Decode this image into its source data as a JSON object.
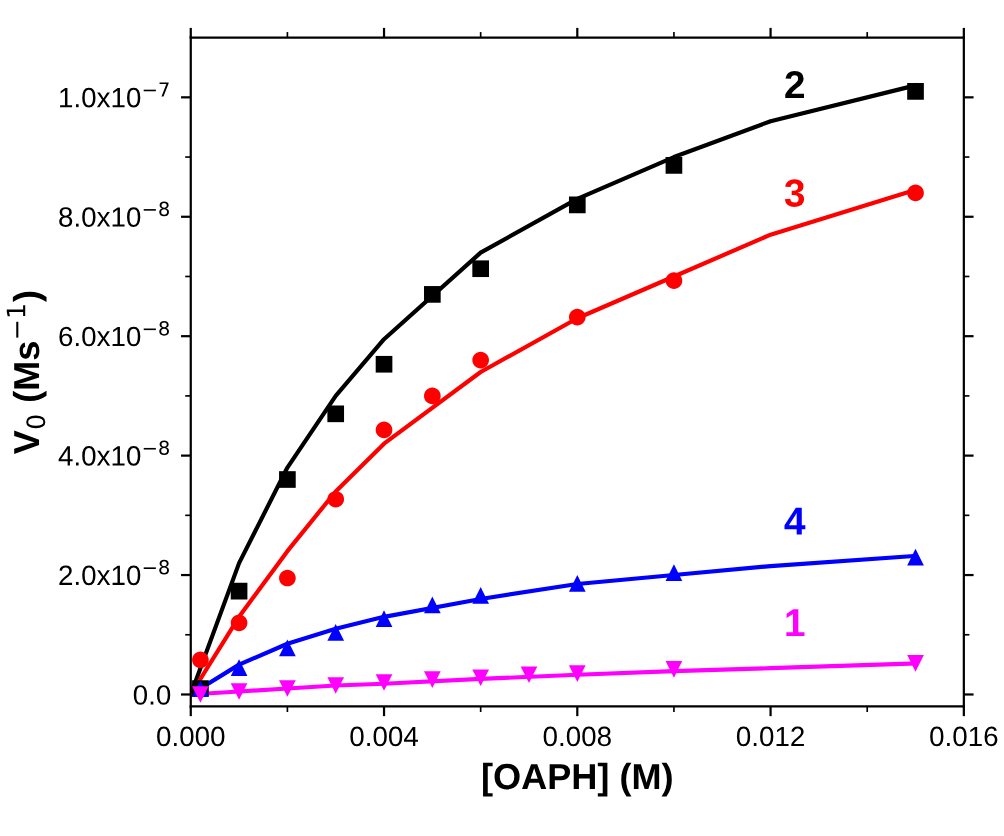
{
  "chart_data": {
    "type": "scatter",
    "xlabel": "[OAPH] (M)",
    "ylabel": "V$_{0}$ (Ms$^{−1}$)",
    "xlim": [
      0,
      0.016
    ],
    "ylim": [
      -2e-09,
      1.1e-07
    ],
    "xticks": [
      {
        "value": 0,
        "label": "0.000"
      },
      0.004,
      0.008,
      0.012,
      0.016
    ],
    "yticks": [
      {
        "value": 0,
        "label": "0.0"
      },
      {
        "value": 2e-08,
        "label": "2.0x10$^{−8}$"
      },
      {
        "value": 4e-08,
        "label": "4.0x10$^{−8}$"
      },
      {
        "value": 6e-08,
        "label": "6.0x10$^{−8}$"
      },
      {
        "value": 8e-08,
        "label": "8.0x10$^{−8}$"
      },
      {
        "value": 1e-07,
        "label": "1.0x10$^{−7}$"
      }
    ],
    "grid": false,
    "series": [
      {
        "name": "2",
        "color": "#000000",
        "marker": "square",
        "x": [
          0.0002,
          0.001,
          0.002,
          0.003,
          0.004,
          0.005,
          0.006,
          0.008,
          0.01,
          0.015
        ],
        "values": [
          1e-09,
          1.73e-08,
          3.6e-08,
          4.7e-08,
          5.53e-08,
          6.7e-08,
          7.13e-08,
          8.2e-08,
          8.86e-08,
          1.01e-07
        ]
      },
      {
        "name": "3",
        "color": "#ff0000",
        "marker": "circle",
        "x": [
          0.0002,
          0.001,
          0.002,
          0.003,
          0.004,
          0.005,
          0.006,
          0.008,
          0.01,
          0.015
        ],
        "values": [
          5.8e-09,
          1.2e-08,
          1.95e-08,
          3.27e-08,
          4.43e-08,
          5e-08,
          5.6e-08,
          6.32e-08,
          6.93e-08,
          8.4e-08
        ]
      },
      {
        "name": "4",
        "color": "#0000ff",
        "marker": "triangle",
        "x": [
          0.0002,
          0.001,
          0.002,
          0.003,
          0.004,
          0.005,
          0.006,
          0.008,
          0.01,
          0.015
        ],
        "values": [
          1e-09,
          4.5e-09,
          7.8e-09,
          1.04e-08,
          1.27e-08,
          1.5e-08,
          1.66e-08,
          1.86e-08,
          2.04e-08,
          2.3e-08
        ]
      },
      {
        "name": "1",
        "color": "#ff00ff",
        "marker": "triangle_down",
        "x": [
          0.0002,
          0.001,
          0.002,
          0.003,
          0.004,
          0.005,
          0.006,
          0.007,
          0.008,
          0.01,
          0.015
        ],
        "values": [
          0,
          5e-10,
          1e-09,
          1.5e-09,
          2e-09,
          2.5e-09,
          2.8e-09,
          3.3e-09,
          3.5e-09,
          4.2e-09,
          5.2e-09
        ]
      },
      {
        "type": "line",
        "color": "#000000",
        "x": [
          0,
          0.001,
          0.002,
          0.003,
          0.004,
          0.006,
          0.008,
          0.01,
          0.012,
          0.015
        ],
        "values": [
          0,
          2.2e-08,
          3.8e-08,
          5e-08,
          5.95e-08,
          7.4e-08,
          8.3e-08,
          9e-08,
          9.6e-08,
          1.02e-07
        ]
      },
      {
        "type": "line",
        "color": "#ff0000",
        "x": [
          0,
          0.001,
          0.002,
          0.003,
          0.004,
          0.006,
          0.008,
          0.01,
          0.012,
          0.015
        ],
        "values": [
          0,
          1.3e-08,
          2.4e-08,
          3.4e-08,
          4.2e-08,
          5.4e-08,
          6.3e-08,
          7e-08,
          7.7e-08,
          8.45e-08
        ]
      },
      {
        "type": "line",
        "color": "#0000ff",
        "x": [
          0,
          0.001,
          0.002,
          0.003,
          0.004,
          0.006,
          0.008,
          0.01,
          0.012,
          0.015
        ],
        "values": [
          0,
          5e-09,
          8.5e-09,
          1.1e-08,
          1.3e-08,
          1.6e-08,
          1.85e-08,
          2e-08,
          2.15e-08,
          2.32e-08
        ]
      },
      {
        "type": "line",
        "color": "#ff00ff",
        "x": [
          0,
          0.001,
          0.002,
          0.003,
          0.004,
          0.006,
          0.008,
          0.01,
          0.012,
          0.015
        ],
        "values": [
          0,
          5e-10,
          1e-09,
          1.5e-09,
          1.8e-09,
          2.6e-09,
          3.3e-09,
          3.9e-09,
          4.4e-09,
          5.2e-09
        ]
      }
    ]
  }
}
